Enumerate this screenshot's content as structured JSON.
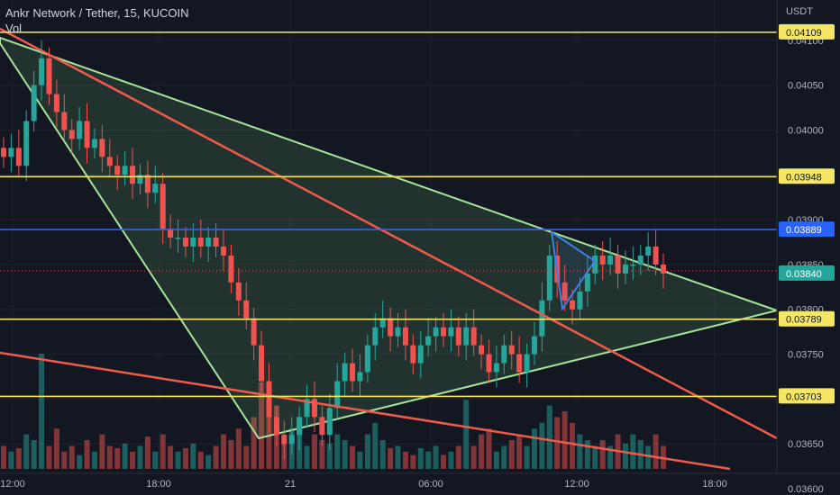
{
  "header": {
    "symbol_title": "Ankr Network / Tether, 15, KUCOIN",
    "volume_label": "Vol"
  },
  "colors": {
    "background": "#131722",
    "up": "#26a69a",
    "down": "#ef5350",
    "horizontal_level": "#f5e663",
    "blue_level": "#2962ff",
    "trend_red": "#f05a4a",
    "wedge": "#a5e39b",
    "wedge_fill": "rgba(120,190,120,0.16)",
    "triangle": "#3d7fe6",
    "grid": "#1e222d"
  },
  "chart_data": {
    "type": "candlestick",
    "title": "Ankr Network / Tether, 15, KUCOIN",
    "price_axis_unit": "USDT",
    "ylim": [
      0.03595,
      0.04145
    ],
    "price_ticks": [
      "0.04100",
      "0.04050",
      "0.04000",
      "0.03950",
      "0.03900",
      "0.03850",
      "0.03800",
      "0.03750",
      "0.03700",
      "0.03650",
      "0.03600"
    ],
    "time_ticks": [
      "12:00",
      "18:00",
      "21",
      "06:00",
      "12:00",
      "18:00"
    ],
    "current_price": "0.03840",
    "horizontal_levels": [
      {
        "label": "0.04109",
        "price": 0.04109,
        "color": "yellow"
      },
      {
        "label": "0.03948",
        "price": 0.03948,
        "color": "yellow"
      },
      {
        "label": "0.03889",
        "price": 0.03889,
        "color": "blue"
      },
      {
        "label": "0.03789",
        "price": 0.03789,
        "color": "yellow"
      },
      {
        "label": "0.03703",
        "price": 0.03703,
        "color": "yellow"
      }
    ],
    "closes": [
      0.0397,
      0.0398,
      0.0396,
      0.0401,
      0.0405,
      0.0408,
      0.0404,
      0.0402,
      0.04,
      0.0399,
      0.0401,
      0.0398,
      0.0399,
      0.0397,
      0.0396,
      0.0395,
      0.0396,
      0.0394,
      0.0395,
      0.0393,
      0.0394,
      0.0389,
      0.0388,
      0.0388,
      0.0387,
      0.0388,
      0.0387,
      0.0388,
      0.0387,
      0.0386,
      0.0383,
      0.0381,
      0.0379,
      0.0376,
      0.0372,
      0.0368,
      0.0366,
      0.0365,
      0.0366,
      0.0368,
      0.037,
      0.0368,
      0.0366,
      0.0369,
      0.0372,
      0.0374,
      0.0372,
      0.0373,
      0.0376,
      0.0378,
      0.0379,
      0.0377,
      0.0378,
      0.0376,
      0.0374,
      0.0376,
      0.0377,
      0.0378,
      0.0377,
      0.0378,
      0.0376,
      0.0378,
      0.0376,
      0.0375,
      0.0373,
      0.0374,
      0.0376,
      0.0375,
      0.0373,
      0.0375,
      0.0377,
      0.0381,
      0.0386,
      0.0383,
      0.0381,
      0.038,
      0.0382,
      0.0384,
      0.0386,
      0.0385,
      0.0386,
      0.0384,
      0.0385,
      0.0385,
      0.0386,
      0.0387,
      0.0385,
      0.0384
    ],
    "volumes": [
      0.2,
      0.15,
      0.18,
      0.3,
      0.25,
      1.0,
      0.2,
      0.35,
      0.15,
      0.2,
      0.12,
      0.25,
      0.15,
      0.3,
      0.2,
      0.18,
      0.22,
      0.15,
      0.2,
      0.28,
      0.15,
      0.3,
      0.2,
      0.15,
      0.18,
      0.22,
      0.15,
      0.12,
      0.2,
      0.3,
      0.25,
      0.35,
      0.2,
      0.45,
      0.75,
      0.6,
      0.55,
      0.3,
      0.35,
      0.4,
      0.2,
      0.3,
      0.25,
      0.22,
      0.3,
      0.25,
      0.2,
      0.15,
      0.3,
      0.4,
      0.25,
      0.18,
      0.2,
      0.15,
      0.12,
      0.18,
      0.15,
      0.2,
      0.12,
      0.15,
      0.2,
      0.6,
      0.2,
      0.3,
      0.35,
      0.15,
      0.2,
      0.25,
      0.3,
      0.2,
      0.35,
      0.4,
      0.55,
      0.45,
      0.5,
      0.4,
      0.3,
      0.25,
      0.2,
      0.25,
      0.2,
      0.3,
      0.22,
      0.3,
      0.25,
      0.2,
      0.3,
      0.2
    ]
  }
}
